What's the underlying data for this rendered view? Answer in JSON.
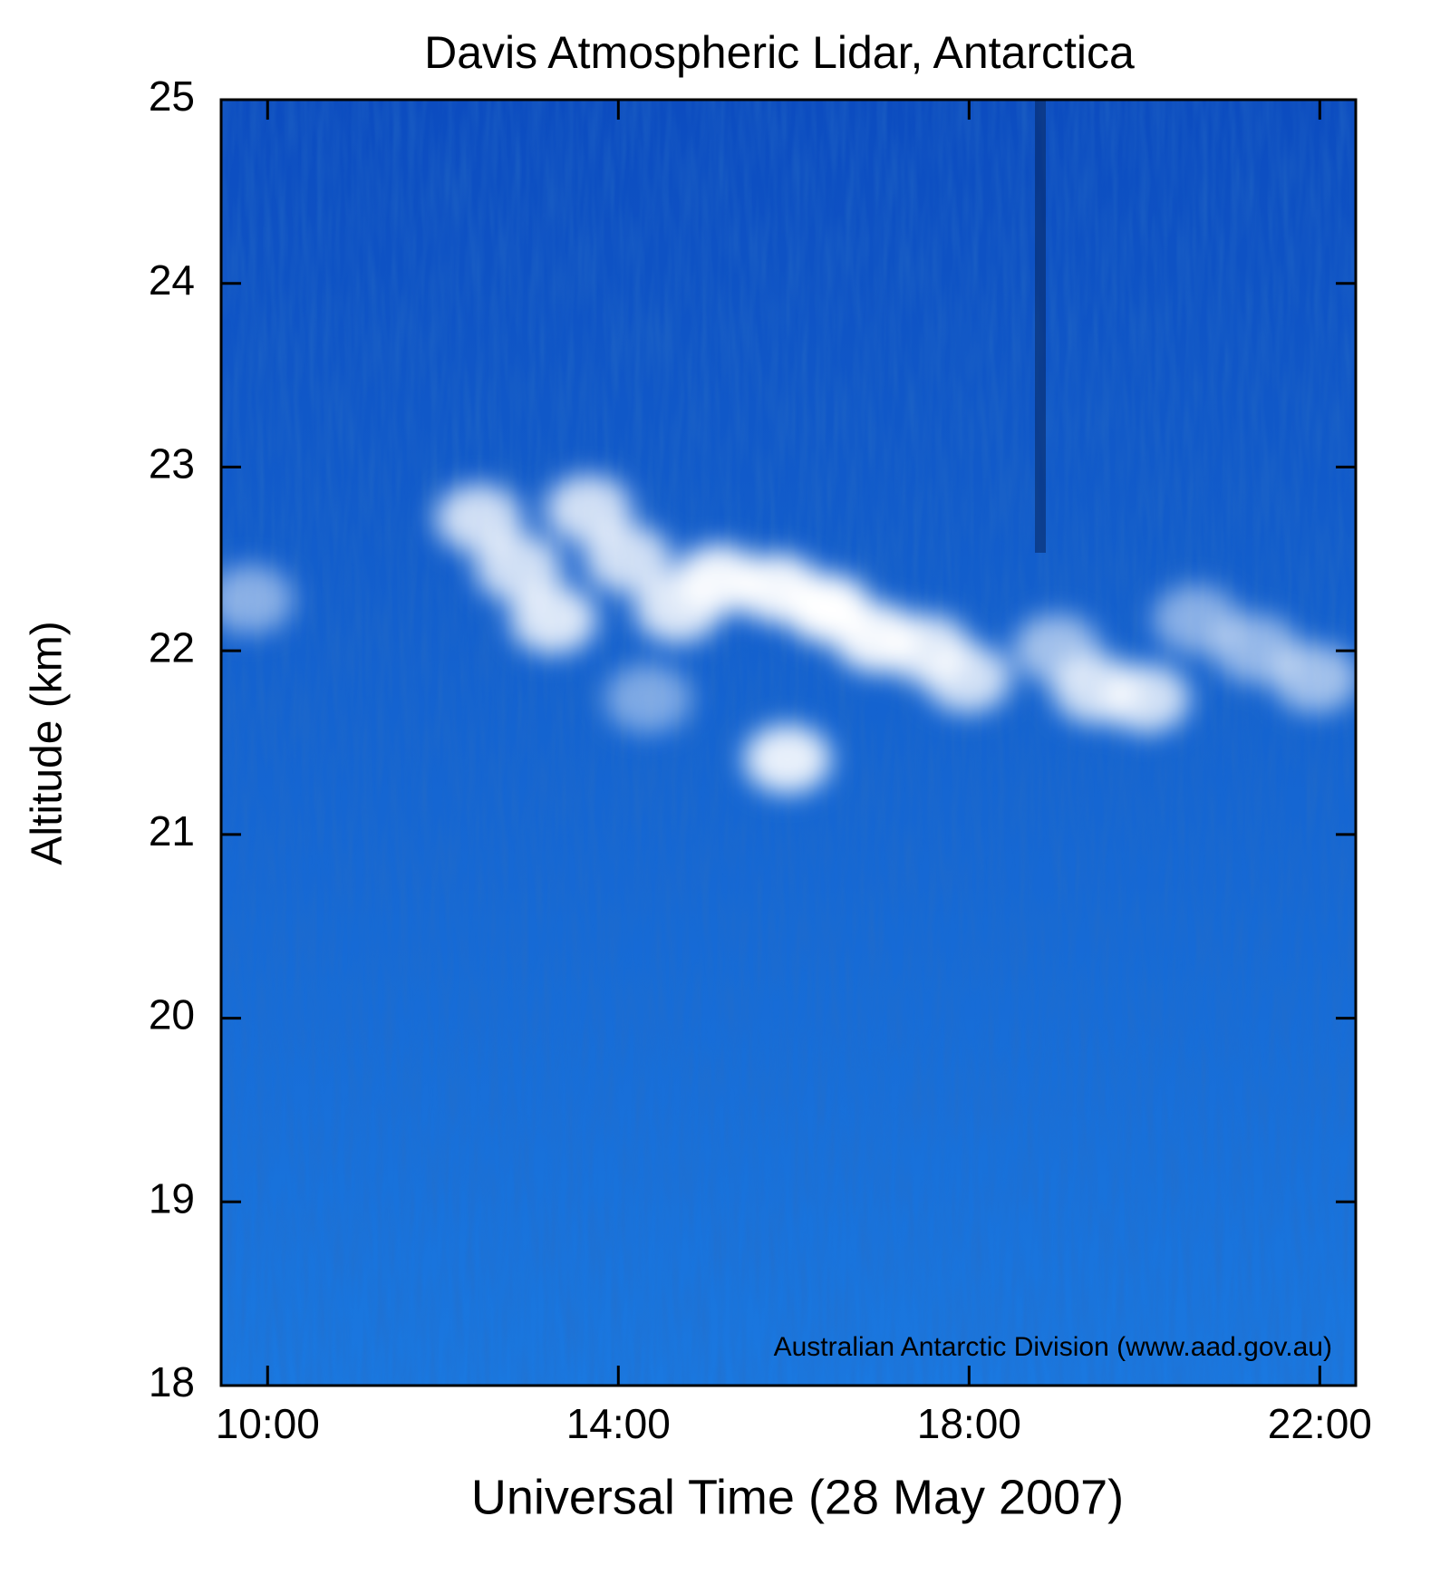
{
  "chart_data": {
    "type": "scatter",
    "title": "Davis Atmospheric Lidar, Antarctica",
    "x_label": "Universal Time (28 May 2007)",
    "y_label": "Altitude (km)",
    "annotation": "Australian Antarctic Division (www.aad.gov.au)",
    "xlim": [
      9.47,
      22.41
    ],
    "ylim": [
      18,
      25
    ],
    "xticks": [
      {
        "value": 10,
        "label": "10:00"
      },
      {
        "value": 14,
        "label": "14:00"
      },
      {
        "value": 18,
        "label": "18:00"
      },
      {
        "value": 22,
        "label": "22:00"
      }
    ],
    "yticks": [
      18,
      19,
      20,
      21,
      22,
      23,
      24,
      25
    ],
    "color": "#ffffff",
    "x": [
      9.8,
      12.41,
      12.86,
      13.26,
      13.66,
      14.11,
      14.68,
      15.14,
      15.82,
      16.39,
      16.95,
      17.52,
      17.98,
      15.93,
      14.34,
      19.0,
      19.45,
      20.02,
      20.59,
      21.27,
      21.95
    ],
    "y": [
      22.28,
      22.72,
      22.45,
      22.17,
      22.77,
      22.5,
      22.23,
      22.39,
      22.34,
      22.23,
      22.07,
      22.01,
      21.85,
      21.41,
      21.74,
      22.01,
      21.79,
      21.74,
      22.17,
      22.01,
      21.85
    ],
    "values": [
      0.5,
      0.8,
      0.8,
      0.85,
      0.8,
      0.8,
      0.85,
      0.95,
      0.95,
      1,
      0.95,
      0.85,
      0.8,
      0.9,
      0.45,
      0.6,
      0.8,
      0.8,
      0.5,
      0.55,
      0.6
    ]
  }
}
